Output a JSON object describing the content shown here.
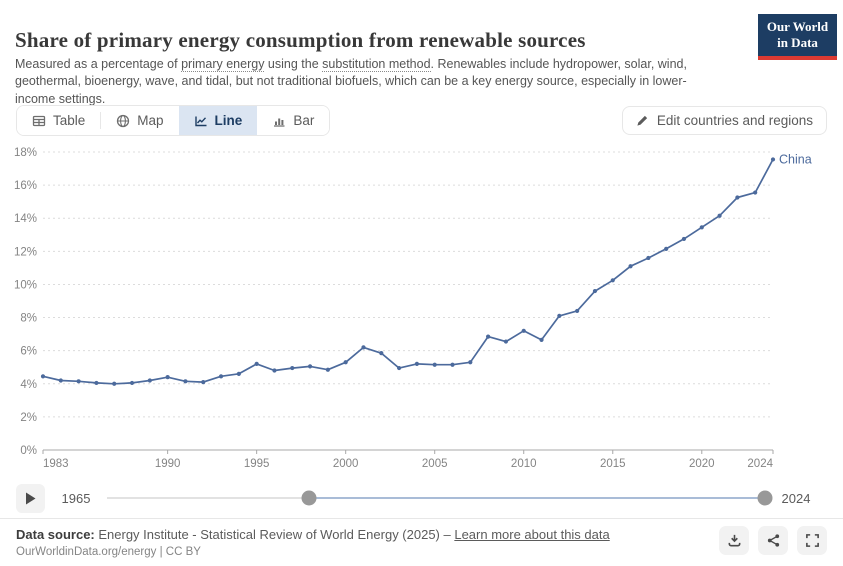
{
  "logo": {
    "line1": "Our World",
    "line2": "in Data"
  },
  "header": {
    "title": "Share of primary energy consumption from renewable sources",
    "subtitle": {
      "part1": "Measured as a percentage of ",
      "link1": "primary energy",
      "part2": " using the ",
      "link2": "substitution method",
      "part3": ". Renewables include hydropower, solar, wind, geothermal, bioenergy, wave, and tidal, but not traditional biofuels, which can be a key energy source, especially in lower-income settings."
    }
  },
  "controls": {
    "tabs": [
      {
        "label": "Table",
        "active": false
      },
      {
        "label": "Map",
        "active": false
      },
      {
        "label": "Line",
        "active": true
      },
      {
        "label": "Bar",
        "active": false
      }
    ],
    "edit_button": "Edit countries and regions"
  },
  "chart_data": {
    "type": "line",
    "title": "Share of primary energy consumption from renewable sources",
    "xlabel": "",
    "ylabel": "",
    "xlim": [
      1983,
      2024
    ],
    "ylim": [
      0,
      18
    ],
    "xticks": [
      1983,
      1990,
      1995,
      2000,
      2005,
      2010,
      2015,
      2020,
      2024
    ],
    "yticks": [
      0,
      2,
      4,
      6,
      8,
      10,
      12,
      14,
      16,
      18
    ],
    "ytick_suffix": "%",
    "grid": "horizontal-dashed",
    "legend_position": "end-of-line-label",
    "series": [
      {
        "name": "China",
        "color": "#4c6a9c",
        "x": [
          1983,
          1984,
          1985,
          1986,
          1987,
          1988,
          1989,
          1990,
          1991,
          1992,
          1993,
          1994,
          1995,
          1996,
          1997,
          1998,
          1999,
          2000,
          2001,
          2002,
          2003,
          2004,
          2005,
          2006,
          2007,
          2008,
          2009,
          2010,
          2011,
          2012,
          2013,
          2014,
          2015,
          2016,
          2017,
          2018,
          2019,
          2020,
          2021,
          2022,
          2023,
          2024
        ],
        "values": [
          4.45,
          4.2,
          4.15,
          4.05,
          4.0,
          4.05,
          4.2,
          4.4,
          4.15,
          4.1,
          4.45,
          4.6,
          5.2,
          4.8,
          4.95,
          5.05,
          4.85,
          5.3,
          6.2,
          5.85,
          4.95,
          5.2,
          5.15,
          5.15,
          5.3,
          6.85,
          6.55,
          7.2,
          6.65,
          8.1,
          8.4,
          9.6,
          10.25,
          11.1,
          11.6,
          12.15,
          12.75,
          13.45,
          14.15,
          15.25,
          15.55,
          17.55
        ]
      }
    ]
  },
  "timeline": {
    "start_year": "1965",
    "end_year": "2024"
  },
  "footer": {
    "datasource_label": "Data source:",
    "datasource_text": " Energy Institute - Statistical Review of World Energy (2025) – ",
    "learn_more_link": "Learn more about this data",
    "credit": "OurWorldinData.org/energy | CC BY"
  },
  "colors": {
    "accent_navy": "#1d3d63",
    "brand_red": "#dc3a32",
    "line_blue": "#4c6a9c",
    "active_tab_bg": "#dbe5f2"
  }
}
